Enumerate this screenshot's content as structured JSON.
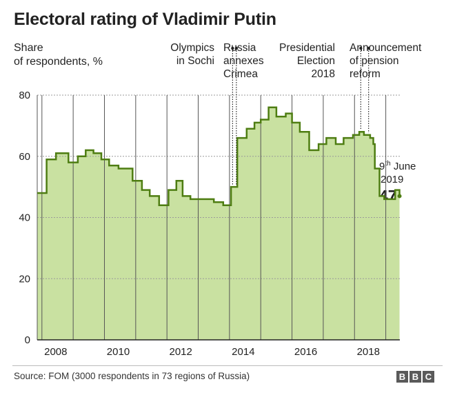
{
  "title": "Electoral rating of Vladimir Putin",
  "ylabel_lines": [
    "Share",
    "of respondents, %"
  ],
  "annotations": [
    {
      "lines": [
        "Olympics",
        "in Sochi"
      ],
      "date": 2014.1
    },
    {
      "lines": [
        "Russia",
        "annexes",
        "Crimea"
      ],
      "date": 2014.22
    },
    {
      "lines": [
        "Presidential",
        "Election",
        "2018"
      ],
      "date": 2018.2
    },
    {
      "lines": [
        "Announcement",
        "of pension",
        "reform"
      ],
      "date": 2018.45
    }
  ],
  "latest": {
    "day": "9",
    "suffix": "th",
    "month": " June",
    "year": "2019",
    "value": "47"
  },
  "source": "Source: FOM (3000 respondents in 73 regions of Russia)",
  "logo": [
    "B",
    "B",
    "C"
  ],
  "colors": {
    "line": "#4e7d12",
    "fill": "#c9e1a1",
    "grid": "#555555"
  },
  "chart_data": {
    "type": "area",
    "title": "Electoral rating of Vladimir Putin",
    "ylabel": "Share of respondents, %",
    "ylim": [
      0,
      80
    ],
    "xlim": [
      2007.85,
      2019.45
    ],
    "yticks": [
      0,
      20,
      40,
      60,
      80
    ],
    "xticks": [
      2008,
      2010,
      2012,
      2014,
      2016,
      2018
    ],
    "grid": "vertical year lines and horizontal dashed lines",
    "series": [
      {
        "x": [
          2007.85,
          2008.15,
          2008.45,
          2008.85,
          2009.15,
          2009.4,
          2009.65,
          2009.9,
          2010.15,
          2010.45,
          2010.9,
          2011.2,
          2011.45,
          2011.75,
          2012.05,
          2012.3,
          2012.5,
          2012.75,
          2013.0,
          2013.25,
          2013.5,
          2013.8,
          2014.05,
          2014.25,
          2014.55,
          2014.8,
          2015.0,
          2015.25,
          2015.5,
          2015.8,
          2016.0,
          2016.25,
          2016.55,
          2016.85,
          2017.1,
          2017.4,
          2017.65,
          2017.95,
          2018.15,
          2018.3,
          2018.5,
          2018.6,
          2018.65,
          2018.8,
          2018.95,
          2019.1,
          2019.2,
          2019.3,
          2019.44
        ],
        "values": [
          48,
          59,
          61,
          58,
          60,
          62,
          61,
          59,
          57,
          56,
          52,
          49,
          47,
          44,
          49,
          52,
          47,
          46,
          46,
          46,
          45,
          44,
          50,
          66,
          69,
          71,
          72,
          76,
          73,
          74,
          71,
          68,
          62,
          64,
          66,
          64,
          66,
          67,
          68,
          67,
          66,
          64,
          56,
          47,
          46,
          46,
          46,
          49,
          47
        ]
      }
    ]
  }
}
